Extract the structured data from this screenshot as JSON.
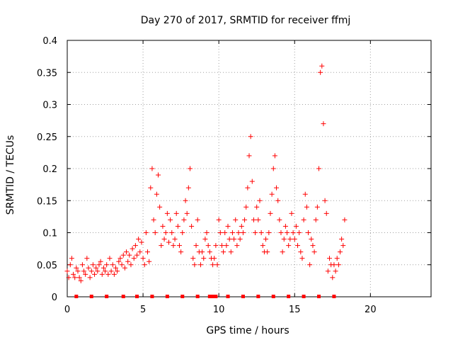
{
  "chart_data": {
    "type": "scatter",
    "title": "Day 270 of 2017, SRMTID for receiver ffmj",
    "xlabel": "GPS time / hours",
    "ylabel": "SRMTID / TECUs",
    "xlim": [
      0,
      24
    ],
    "ylim": [
      0,
      0.4
    ],
    "xticks": [
      0,
      5,
      10,
      15,
      20
    ],
    "xtick_labels": [
      "0",
      "5",
      "10",
      "15",
      "20"
    ],
    "yticks": [
      0,
      0.05,
      0.1,
      0.15,
      0.2,
      0.25,
      0.3,
      0.35,
      0.4
    ],
    "ytick_labels": [
      "0",
      "0.05",
      "0.1",
      "0.15",
      "0.2",
      "0.25",
      "0.3",
      "0.35",
      "0.4"
    ],
    "grid": true,
    "marker": "plus",
    "color": "#ff0000",
    "series": [
      {
        "name": "SRMTID",
        "x": [
          0.0,
          0.1,
          0.2,
          0.3,
          0.4,
          0.5,
          0.6,
          0.7,
          0.8,
          0.9,
          1.0,
          1.1,
          1.2,
          1.3,
          1.4,
          1.5,
          1.6,
          1.7,
          1.8,
          1.9,
          2.0,
          2.1,
          2.2,
          2.3,
          2.4,
          2.5,
          2.6,
          2.7,
          2.8,
          2.9,
          3.0,
          3.1,
          3.2,
          3.3,
          3.4,
          3.5,
          3.6,
          3.7,
          3.8,
          3.9,
          4.0,
          4.1,
          4.2,
          4.3,
          4.4,
          4.5,
          4.6,
          4.7,
          4.8,
          4.9,
          5.0,
          5.1,
          5.2,
          5.3,
          5.4,
          5.5,
          5.6,
          5.7,
          5.8,
          5.9,
          6.0,
          6.1,
          6.2,
          6.3,
          6.4,
          6.5,
          6.6,
          6.7,
          6.8,
          6.9,
          7.0,
          7.1,
          7.2,
          7.3,
          7.4,
          7.5,
          7.6,
          7.7,
          7.8,
          7.9,
          8.0,
          8.1,
          8.2,
          8.3,
          8.4,
          8.5,
          8.6,
          8.7,
          8.8,
          8.9,
          9.0,
          9.1,
          9.2,
          9.3,
          9.4,
          9.5,
          9.6,
          9.7,
          9.8,
          9.9,
          10.0,
          10.1,
          10.2,
          10.3,
          10.4,
          10.5,
          10.6,
          10.7,
          10.8,
          10.9,
          11.0,
          11.1,
          11.2,
          11.3,
          11.4,
          11.5,
          11.6,
          11.7,
          11.8,
          11.9,
          12.0,
          12.1,
          12.2,
          12.3,
          12.4,
          12.5,
          12.6,
          12.7,
          12.8,
          12.9,
          13.0,
          13.1,
          13.2,
          13.3,
          13.4,
          13.5,
          13.6,
          13.7,
          13.8,
          13.9,
          14.0,
          14.1,
          14.2,
          14.3,
          14.4,
          14.5,
          14.6,
          14.7,
          14.8,
          14.9,
          15.0,
          15.1,
          15.2,
          15.3,
          15.4,
          15.5,
          15.6,
          15.7,
          15.8,
          15.9,
          16.0,
          16.1,
          16.2,
          16.3,
          16.4,
          16.5,
          16.6,
          16.7,
          16.8,
          16.9,
          17.0,
          17.1,
          17.2,
          17.3,
          17.4,
          17.5,
          17.6,
          17.7,
          17.8,
          17.9,
          18.0,
          18.1,
          18.2,
          18.3
        ],
        "y": [
          0.04,
          0.03,
          0.05,
          0.06,
          0.035,
          0.03,
          0.045,
          0.04,
          0.03,
          0.025,
          0.05,
          0.04,
          0.035,
          0.06,
          0.045,
          0.03,
          0.04,
          0.05,
          0.035,
          0.045,
          0.04,
          0.05,
          0.055,
          0.035,
          0.045,
          0.04,
          0.05,
          0.035,
          0.06,
          0.04,
          0.05,
          0.035,
          0.045,
          0.04,
          0.055,
          0.06,
          0.05,
          0.065,
          0.045,
          0.07,
          0.055,
          0.065,
          0.05,
          0.075,
          0.06,
          0.08,
          0.065,
          0.09,
          0.07,
          0.085,
          0.06,
          0.05,
          0.1,
          0.07,
          0.055,
          0.17,
          0.2,
          0.12,
          0.1,
          0.16,
          0.19,
          0.14,
          0.08,
          0.11,
          0.09,
          0.1,
          0.13,
          0.085,
          0.12,
          0.1,
          0.08,
          0.09,
          0.13,
          0.11,
          0.08,
          0.07,
          0.1,
          0.12,
          0.15,
          0.13,
          0.17,
          0.2,
          0.11,
          0.06,
          0.05,
          0.08,
          0.12,
          0.07,
          0.05,
          0.07,
          0.06,
          0.09,
          0.1,
          0.08,
          0.07,
          0.06,
          0.05,
          0.06,
          0.08,
          0.05,
          0.12,
          0.1,
          0.08,
          0.07,
          0.1,
          0.08,
          0.11,
          0.09,
          0.07,
          0.1,
          0.09,
          0.12,
          0.08,
          0.1,
          0.09,
          0.11,
          0.1,
          0.12,
          0.14,
          0.17,
          0.22,
          0.25,
          0.18,
          0.12,
          0.1,
          0.14,
          0.12,
          0.15,
          0.1,
          0.08,
          0.07,
          0.09,
          0.07,
          0.1,
          0.13,
          0.16,
          0.2,
          0.22,
          0.17,
          0.15,
          0.12,
          0.1,
          0.07,
          0.09,
          0.11,
          0.1,
          0.08,
          0.09,
          0.13,
          0.1,
          0.09,
          0.11,
          0.08,
          0.1,
          0.07,
          0.06,
          0.12,
          0.16,
          0.14,
          0.1,
          0.05,
          0.09,
          0.08,
          0.07,
          0.12,
          0.14,
          0.2,
          0.35,
          0.36,
          0.27,
          0.15,
          0.13,
          0.04,
          0.06,
          0.05,
          0.03,
          0.05,
          0.04,
          0.06,
          0.05,
          0.07,
          0.09,
          0.08,
          0.12
        ]
      }
    ],
    "bottom_markers_x": [
      0.6,
      1.6,
      2.6,
      3.7,
      4.6,
      5.6,
      6.6,
      7.6,
      8.6,
      9.4,
      9.6,
      9.7,
      9.8,
      10.6,
      11.6,
      12.6,
      13.6,
      14.6,
      15.6,
      16.6,
      17.6
    ],
    "bottom_markers_y": 0
  }
}
